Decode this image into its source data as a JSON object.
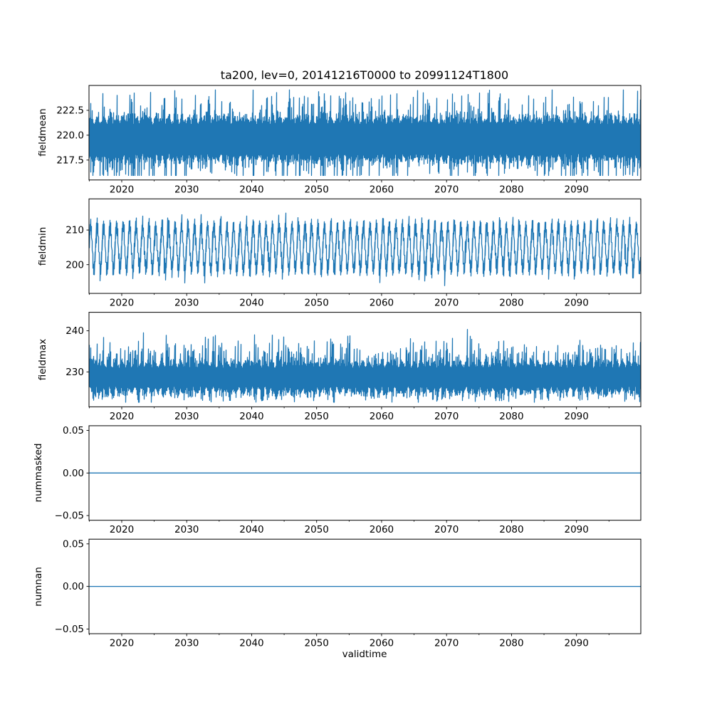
{
  "chart_data": {
    "type": "line",
    "title": "ta200, lev=0, 20141216T0000 to 20991124T1800",
    "xlabel": "validtime",
    "line_color": "#1f77b4",
    "axis_color": "#000000",
    "background_color": "#ffffff",
    "x_range": [
      2014.96,
      2099.9
    ],
    "x_major_ticks": [
      {
        "v": 2020,
        "label": "2020"
      },
      {
        "v": 2030,
        "label": "2030"
      },
      {
        "v": 2040,
        "label": "2040"
      },
      {
        "v": 2050,
        "label": "2050"
      },
      {
        "v": 2060,
        "label": "2060"
      },
      {
        "v": 2070,
        "label": "2070"
      },
      {
        "v": 2080,
        "label": "2080"
      },
      {
        "v": 2090,
        "label": "2090"
      }
    ],
    "x_minor_tick_years": [
      2015,
      2025,
      2035,
      2045,
      2055,
      2065,
      2075,
      2085,
      2095
    ],
    "legend": "none",
    "grid": false,
    "panels": [
      {
        "ylabel": "fieldmean",
        "ylim": [
          215.5,
          225.0
        ],
        "yticks": [
          {
            "v": 217.5,
            "label": "217.5"
          },
          {
            "v": 220.0,
            "label": "220.0"
          },
          {
            "v": 222.5,
            "label": "222.5"
          }
        ],
        "series": {
          "name": "fieldmean",
          "kind": "band",
          "seed": 42,
          "base": 219.6,
          "seasonal_amp": 0.25,
          "band": 1.7,
          "spread": 1.5,
          "spike_p": 0.25,
          "spike_max": 2.6,
          "phase": 0.0,
          "clip": [
            215.95,
            224.55
          ]
        },
        "summary": {
          "approx_mean": 219.9,
          "approx_min": 215.9,
          "approx_max": 224.6,
          "description": "dense noisy band between ~217.5 and ~222.5 with spikes"
        }
      },
      {
        "ylabel": "fieldmin",
        "ylim": [
          191.7,
          219.0
        ],
        "yticks": [
          {
            "v": 200,
            "label": "200"
          },
          {
            "v": 210,
            "label": "210"
          }
        ],
        "series": {
          "name": "fieldmin",
          "kind": "seasonal",
          "seed": 7,
          "base": 204.9,
          "seasonal_amp": 6.3,
          "band": 1.2,
          "spread": 1.9,
          "spike_p": 0.12,
          "spike_max": 2.4,
          "phase": 0.3,
          "clip": [
            193.2,
            217.6
          ]
        },
        "summary": {
          "approx_mean": 204.9,
          "approx_min": 193.2,
          "approx_max": 217.6,
          "oscillation_period_years": 1,
          "description": "regular annual oscillation, peaks ~213-217, troughs ~193-197"
        }
      },
      {
        "ylabel": "fieldmax",
        "ylim": [
          221.5,
          244.5
        ],
        "yticks": [
          {
            "v": 230,
            "label": "230"
          },
          {
            "v": 240,
            "label": "240"
          }
        ],
        "series": {
          "name": "fieldmax",
          "kind": "spiky",
          "seed": 13,
          "base": 229.2,
          "seasonal_amp": 0.7,
          "band_up": 2.4,
          "band_dn": 3.4,
          "spread": 1.5,
          "up_spike_p": 0.35,
          "up_spike_base": 1.5,
          "up_spike_var": 6.5,
          "big_spike_p": 0.012,
          "big_spike_add": 2.5,
          "dn_spike_p": 0.3,
          "dn_spike_base": 0.8,
          "dn_spike_var": 2.2,
          "phase": 1.2,
          "clip": [
            222.6,
            243.5
          ]
        },
        "summary": {
          "approx_mean": 229.5,
          "approx_min": 222.6,
          "approx_max": 243.5,
          "description": "dense band ~226-234 with frequent upward spikes to ~236-243"
        }
      },
      {
        "ylabel": "nummasked",
        "ylim": [
          -0.0555,
          0.0555
        ],
        "yticks": [
          {
            "v": -0.05,
            "label": "−0.05"
          },
          {
            "v": 0.0,
            "label": "0.00"
          },
          {
            "v": 0.05,
            "label": "0.05"
          }
        ],
        "series": {
          "name": "nummasked",
          "kind": "constant",
          "value": 0
        },
        "summary": {
          "constant_value": 0,
          "description": "flat line at 0.00"
        }
      },
      {
        "ylabel": "numnan",
        "ylim": [
          -0.0555,
          0.0555
        ],
        "yticks": [
          {
            "v": -0.05,
            "label": "−0.05"
          },
          {
            "v": 0.0,
            "label": "0.00"
          },
          {
            "v": 0.05,
            "label": "0.05"
          }
        ],
        "series": {
          "name": "numnan",
          "kind": "constant",
          "value": 0
        },
        "summary": {
          "constant_value": 0,
          "description": "flat line at 0.00"
        }
      }
    ]
  }
}
